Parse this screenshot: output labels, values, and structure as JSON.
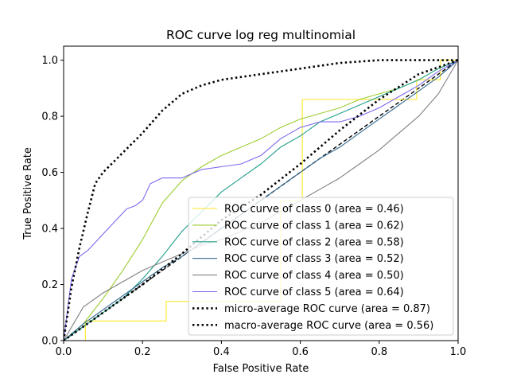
{
  "chart_data": {
    "type": "line",
    "title": "ROC curve log reg multinomial",
    "xlabel": "False Positive Rate",
    "ylabel": "True Positive Rate",
    "xlim": [
      0,
      1
    ],
    "ylim": [
      0,
      1.05
    ],
    "xticks": [
      "0.0",
      "0.2",
      "0.4",
      "0.6",
      "0.8",
      "1.0"
    ],
    "yticks": [
      "0.0",
      "0.2",
      "0.4",
      "0.6",
      "0.8",
      "1.0"
    ],
    "grid": false,
    "legend_position": "lower-right",
    "reference_line": {
      "x": [
        0,
        1
      ],
      "y": [
        0,
        1
      ],
      "style": "dashed",
      "color": "#000000"
    },
    "series": [
      {
        "name": "ROC curve of class 0 (area = 0.46)",
        "color": "#fde725",
        "style": "step",
        "x": [
          0,
          0.055,
          0.055,
          0.26,
          0.26,
          0.55,
          0.55,
          0.605,
          0.605,
          0.895,
          0.895,
          0.955,
          0.955,
          1.0
        ],
        "y": [
          0,
          0,
          0.07,
          0.07,
          0.14,
          0.14,
          0.5,
          0.5,
          0.86,
          0.86,
          0.93,
          0.93,
          1.0,
          1.0
        ]
      },
      {
        "name": "ROC curve of class 1 (area = 0.62)",
        "color": "#9ccc30",
        "style": "solid",
        "x": [
          0,
          0.05,
          0.1,
          0.15,
          0.2,
          0.25,
          0.3,
          0.35,
          0.4,
          0.45,
          0.5,
          0.55,
          0.6,
          0.65,
          0.7,
          0.75,
          0.8,
          0.85,
          0.9,
          0.95,
          1.0
        ],
        "y": [
          0,
          0.06,
          0.15,
          0.25,
          0.36,
          0.49,
          0.57,
          0.62,
          0.66,
          0.69,
          0.72,
          0.76,
          0.79,
          0.81,
          0.83,
          0.86,
          0.88,
          0.9,
          0.93,
          0.97,
          1.0
        ]
      },
      {
        "name": "ROC curve of class 2 (area = 0.58)",
        "color": "#1f9e89",
        "style": "solid",
        "x": [
          0,
          0.05,
          0.1,
          0.15,
          0.2,
          0.25,
          0.3,
          0.35,
          0.4,
          0.45,
          0.5,
          0.55,
          0.6,
          0.65,
          0.7,
          0.75,
          0.8,
          0.85,
          0.9,
          0.95,
          1.0
        ],
        "y": [
          0,
          0.05,
          0.1,
          0.15,
          0.22,
          0.3,
          0.39,
          0.46,
          0.53,
          0.58,
          0.63,
          0.69,
          0.73,
          0.78,
          0.81,
          0.84,
          0.87,
          0.9,
          0.93,
          0.97,
          1.0
        ]
      },
      {
        "name": "ROC curve of class 3 (area = 0.52)",
        "color": "#31688e",
        "style": "solid",
        "x": [
          0,
          0.05,
          0.1,
          0.15,
          0.2,
          0.25,
          0.3,
          0.35,
          0.4,
          0.45,
          0.5,
          0.55,
          0.6,
          0.65,
          0.7,
          0.75,
          0.8,
          0.85,
          0.9,
          0.95,
          1.0
        ],
        "y": [
          0,
          0.06,
          0.11,
          0.16,
          0.21,
          0.26,
          0.3,
          0.35,
          0.4,
          0.45,
          0.5,
          0.55,
          0.6,
          0.65,
          0.69,
          0.74,
          0.79,
          0.84,
          0.89,
          0.94,
          1.0
        ]
      },
      {
        "name": "ROC curve of class 4 (area = 0.50)",
        "color": "#808080",
        "style": "solid",
        "x": [
          0,
          0.05,
          0.1,
          0.15,
          0.2,
          0.25,
          0.3,
          0.35,
          0.4,
          0.45,
          0.5,
          0.55,
          0.6,
          0.65,
          0.7,
          0.75,
          0.8,
          0.85,
          0.9,
          0.95,
          1.0
        ],
        "y": [
          0,
          0.12,
          0.17,
          0.21,
          0.25,
          0.28,
          0.31,
          0.34,
          0.36,
          0.39,
          0.42,
          0.46,
          0.5,
          0.54,
          0.58,
          0.63,
          0.68,
          0.74,
          0.8,
          0.88,
          1.0
        ]
      },
      {
        "name": "ROC curve of class 5 (area = 0.64)",
        "color": "#7b68ee",
        "style": "solid",
        "x": [
          0,
          0.02,
          0.04,
          0.06,
          0.08,
          0.1,
          0.12,
          0.14,
          0.16,
          0.18,
          0.2,
          0.22,
          0.25,
          0.3,
          0.35,
          0.4,
          0.45,
          0.5,
          0.55,
          0.6,
          0.65,
          0.7,
          0.75,
          0.8,
          0.85,
          0.9,
          0.95,
          1.0
        ],
        "y": [
          0,
          0.22,
          0.3,
          0.32,
          0.35,
          0.38,
          0.41,
          0.44,
          0.47,
          0.48,
          0.5,
          0.56,
          0.58,
          0.58,
          0.61,
          0.62,
          0.63,
          0.66,
          0.72,
          0.76,
          0.78,
          0.78,
          0.8,
          0.83,
          0.87,
          0.91,
          0.96,
          1.0
        ]
      },
      {
        "name": "micro-average ROC curve (area = 0.87)",
        "color": "#000000",
        "style": "dotted",
        "x": [
          0,
          0.02,
          0.04,
          0.06,
          0.08,
          0.1,
          0.15,
          0.2,
          0.25,
          0.3,
          0.35,
          0.4,
          0.5,
          0.6,
          0.7,
          0.8,
          0.9,
          1.0
        ],
        "y": [
          0,
          0.19,
          0.33,
          0.45,
          0.56,
          0.6,
          0.67,
          0.74,
          0.82,
          0.88,
          0.91,
          0.93,
          0.95,
          0.97,
          0.99,
          1.0,
          1.0,
          1.0
        ]
      },
      {
        "name": "macro-average ROC curve (area = 0.56)",
        "color": "#000000",
        "style": "dotted",
        "x": [
          0,
          0.1,
          0.2,
          0.3,
          0.4,
          0.5,
          0.6,
          0.7,
          0.8,
          0.9,
          1.0
        ],
        "y": [
          0,
          0.1,
          0.2,
          0.31,
          0.43,
          0.52,
          0.63,
          0.75,
          0.86,
          0.95,
          1.0
        ]
      }
    ]
  }
}
